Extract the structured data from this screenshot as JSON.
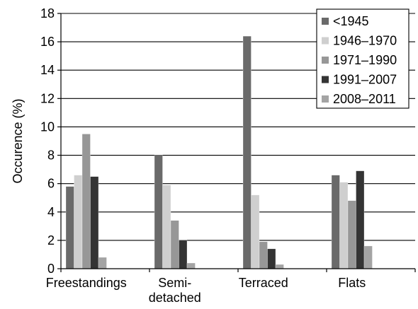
{
  "chart_data": {
    "type": "bar",
    "title": "",
    "xlabel": "",
    "ylabel": "Occurence (%)",
    "ylim": [
      0,
      18
    ],
    "yticks": [
      0,
      2,
      4,
      6,
      8,
      10,
      12,
      14,
      16,
      18
    ],
    "grid": true,
    "legend_position": "top-right",
    "categories": [
      [
        "Freestandings"
      ],
      [
        "Semi-",
        "detached"
      ],
      [
        "Terraced"
      ],
      [
        "Flats"
      ]
    ],
    "series": [
      {
        "name": "<1945",
        "color": "#6a6a6a",
        "values": [
          5.8,
          8.0,
          16.4,
          6.6
        ]
      },
      {
        "name": "1946–1970",
        "color": "#cfcfcf",
        "values": [
          6.6,
          5.9,
          5.2,
          6.1
        ]
      },
      {
        "name": "1971–1990",
        "color": "#979797",
        "values": [
          9.5,
          3.4,
          1.9,
          4.8
        ]
      },
      {
        "name": "1991–2007",
        "color": "#343434",
        "values": [
          6.5,
          2.0,
          1.4,
          6.9
        ]
      },
      {
        "name": "2008–2011",
        "color": "#a4a4a4",
        "values": [
          0.8,
          0.4,
          0.3,
          1.6
        ]
      }
    ]
  }
}
